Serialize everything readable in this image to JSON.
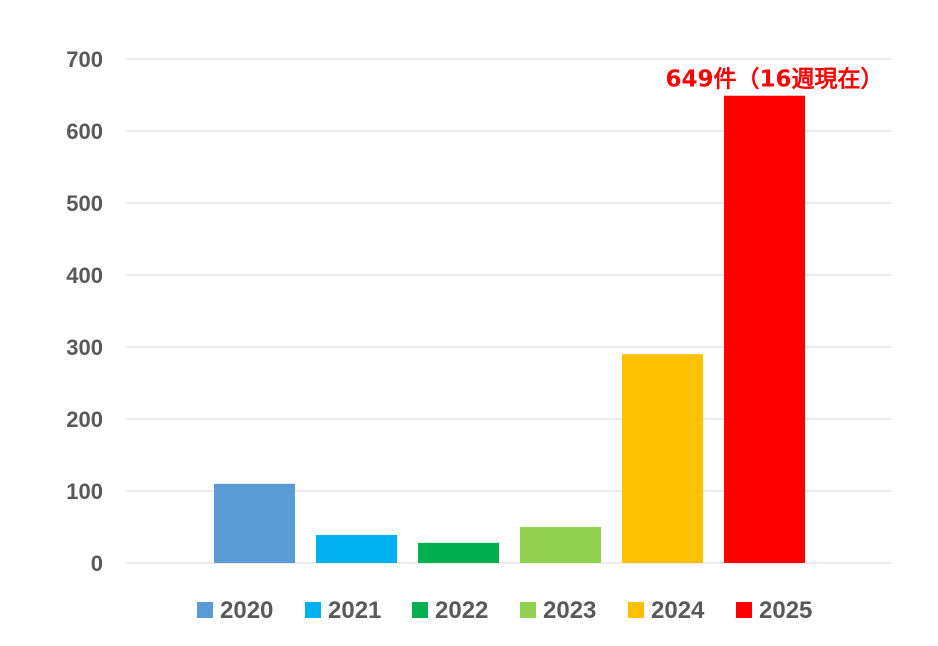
{
  "chart_data": {
    "type": "bar",
    "categories": [
      "2020",
      "2021",
      "2022",
      "2023",
      "2024",
      "2025"
    ],
    "values": [
      110,
      39,
      28,
      50,
      290,
      649
    ],
    "colors": [
      "#5b9bd5",
      "#00b0f0",
      "#00b050",
      "#92d050",
      "#ffc000",
      "#ff0000"
    ],
    "yticks": [
      "0",
      "100",
      "200",
      "300",
      "400",
      "500",
      "600",
      "700"
    ],
    "ylim": [
      0,
      700
    ],
    "grid": true,
    "legend_position": "bottom",
    "legend": [
      "2020",
      "2021",
      "2022",
      "2023",
      "2024",
      "2025"
    ],
    "annotation": {
      "text": "649件（16週現在）",
      "category": "2025",
      "color": "#ff0000"
    },
    "title": "",
    "xlabel": "",
    "ylabel": ""
  }
}
